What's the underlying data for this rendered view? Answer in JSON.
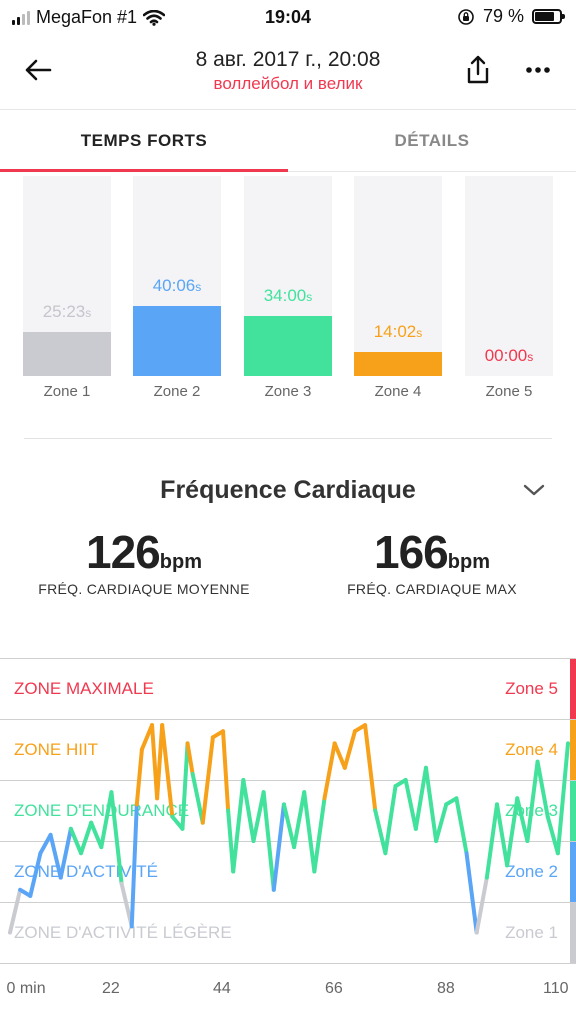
{
  "status": {
    "carrier": "MegaFon #1",
    "time": "19:04",
    "battery": "79 %"
  },
  "header": {
    "title": "8 авг. 2017 г., 20:08",
    "subtitle": "воллейбол и велик"
  },
  "tabs": {
    "active": "TEMPS FORTS",
    "inactive": "DÉTAILS"
  },
  "zones": [
    {
      "label": "Zone 1",
      "value": "25:23",
      "unit": "s",
      "fill": 0.22,
      "color": "#c9cbd1"
    },
    {
      "label": "Zone 2",
      "value": "40:06",
      "unit": "s",
      "fill": 0.35,
      "color": "#5aa5f5"
    },
    {
      "label": "Zone 3",
      "value": "34:00",
      "unit": "s",
      "fill": 0.3,
      "color": "#42e29c"
    },
    {
      "label": "Zone 4",
      "value": "14:02",
      "unit": "s",
      "fill": 0.12,
      "color": "#f7a11a"
    },
    {
      "label": "Zone 5",
      "value": "00:00",
      "unit": "s",
      "fill": 0.0,
      "color": "#f0384f"
    }
  ],
  "hr": {
    "title": "Fréquence Cardiaque",
    "avg": {
      "value": "126",
      "unit": "bpm",
      "label": "FRÉQ. CARDIAQUE MOYENNE"
    },
    "max": {
      "value": "166",
      "unit": "bpm",
      "label": "FRÉQ. CARDIAQUE MAX"
    }
  },
  "hr_zones": [
    {
      "name": "ZONE MAXIMALE",
      "zone": "Zone 5",
      "color": "#f0384f"
    },
    {
      "name": "ZONE HIIT",
      "zone": "Zone 4",
      "color": "#f7a11a"
    },
    {
      "name": "ZONE D'ENDURANCE",
      "zone": "Zone 3",
      "color": "#42e29c"
    },
    {
      "name": "ZONE D'ACTIVITÉ",
      "zone": "Zone 2",
      "color": "#5aa5f5"
    },
    {
      "name": "ZONE D'ACTIVITÉ LÉGÈRE",
      "zone": "Zone 1",
      "color": "#c9cbd1"
    }
  ],
  "x_ticks": [
    "0 min",
    "22",
    "44",
    "66",
    "88",
    "110"
  ],
  "chart_data": {
    "type": "line",
    "xlabel": "",
    "ylabel": "",
    "xlim": [
      0,
      110
    ],
    "ylim": [
      0,
      5
    ],
    "x": [
      0,
      2,
      4,
      6,
      8,
      10,
      12,
      14,
      16,
      18,
      20,
      22,
      24,
      25,
      26,
      28,
      29,
      30,
      32,
      34,
      35,
      36,
      38,
      40,
      42,
      43,
      44,
      46,
      48,
      50,
      52,
      54,
      56,
      58,
      60,
      62,
      64,
      66,
      68,
      70,
      72,
      74,
      76,
      78,
      80,
      82,
      84,
      86,
      88,
      90,
      92,
      94,
      96,
      98,
      100,
      102,
      104,
      106,
      108,
      110
    ],
    "values": [
      0.5,
      1.2,
      1.1,
      1.8,
      2.1,
      1.4,
      2.2,
      1.8,
      2.3,
      1.9,
      2.8,
      1.3,
      0.6,
      2.6,
      3.5,
      3.9,
      2.7,
      3.9,
      2.4,
      2.2,
      3.6,
      3.1,
      2.3,
      3.7,
      3.8,
      2.5,
      1.5,
      3.0,
      2.0,
      2.8,
      1.2,
      2.6,
      1.9,
      2.8,
      1.5,
      2.7,
      3.6,
      3.2,
      3.8,
      3.9,
      2.5,
      1.8,
      2.9,
      3.0,
      2.2,
      3.2,
      2.0,
      2.6,
      2.7,
      1.8,
      0.5,
      1.4,
      2.6,
      1.6,
      2.7,
      2.0,
      3.3,
      2.4,
      1.8,
      3.6
    ]
  }
}
